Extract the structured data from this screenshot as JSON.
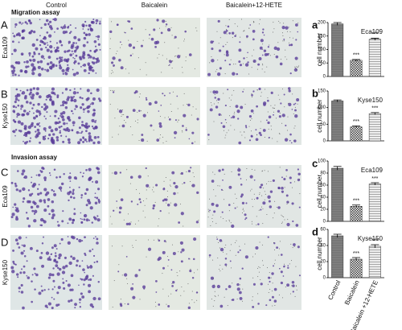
{
  "figure": {
    "columns": [
      "Control",
      "Baicalein",
      "Baicalein+12-HETE"
    ],
    "rows": [
      {
        "letter": "A",
        "cell_line": "Eca109"
      },
      {
        "letter": "B",
        "cell_line": "Kyse150"
      },
      {
        "letter": "C",
        "cell_line": "Eca109"
      },
      {
        "letter": "D",
        "cell_line": "Kyse150"
      }
    ],
    "sections": [
      "Migration assay",
      "Invasion assay"
    ]
  },
  "chart_data": [
    {
      "type": "bar",
      "panel": "a",
      "title": "Eca109",
      "ylabel": "cell number",
      "values": [
        195,
        60,
        138
      ],
      "errors": [
        5,
        3,
        4
      ],
      "value_annotations": [
        null,
        "***",
        "***"
      ],
      "ylim": [
        0,
        200
      ],
      "yticks": [
        0,
        50,
        100,
        150,
        200
      ]
    },
    {
      "type": "bar",
      "panel": "b",
      "title": "Kyse150",
      "ylabel": "cell number",
      "values": [
        120,
        42,
        82
      ],
      "errors": [
        3,
        3,
        3
      ],
      "value_annotations": [
        null,
        "***",
        "***"
      ],
      "ylim": [
        0,
        150
      ],
      "yticks": [
        0,
        50,
        100,
        150
      ]
    },
    {
      "type": "bar",
      "panel": "c",
      "title": "Eca109",
      "ylabel": "cell number",
      "values": [
        88,
        25,
        62
      ],
      "errors": [
        3,
        2,
        2
      ],
      "value_annotations": [
        null,
        "***",
        "***"
      ],
      "ylim": [
        0,
        100
      ],
      "yticks": [
        0,
        20,
        40,
        60,
        80,
        100
      ]
    },
    {
      "type": "bar",
      "panel": "d",
      "title": "Kyse150",
      "ylabel": "cell number",
      "categories": [
        "Control",
        "Baicalein",
        "Baicalein +12-HETE"
      ],
      "values": [
        52,
        23,
        39
      ],
      "errors": [
        2,
        2,
        2
      ],
      "value_annotations": [
        null,
        "***",
        "***"
      ],
      "ylim": [
        0,
        60
      ],
      "yticks": [
        0,
        20,
        40,
        60
      ]
    }
  ]
}
